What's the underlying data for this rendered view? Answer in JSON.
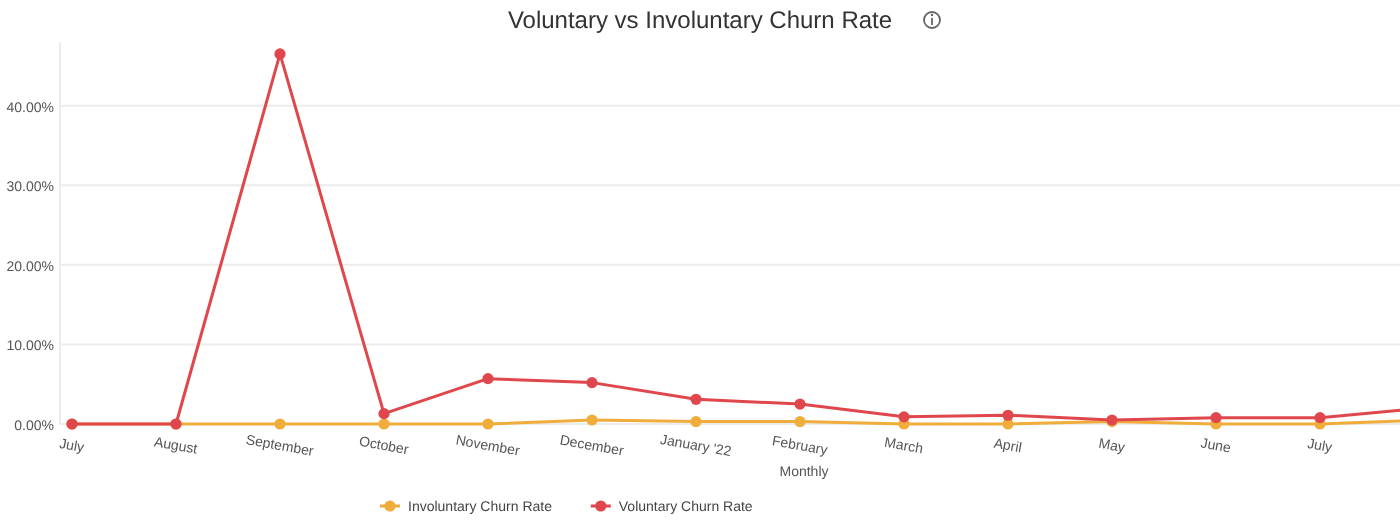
{
  "chart_data": {
    "type": "line",
    "title": "Voluntary vs Involuntary Churn Rate",
    "xlabel": "Monthly",
    "categories": [
      "July",
      "August",
      "September",
      "October",
      "November",
      "December",
      "January '22",
      "February",
      "March",
      "April",
      "May",
      "June",
      "July",
      null
    ],
    "series": [
      {
        "name": "Involuntary Churn Rate",
        "color": "#f0ad3c",
        "values": [
          0,
          0,
          0,
          0,
          0,
          0.5,
          0.3,
          0.3,
          0,
          0,
          0.3,
          0,
          0,
          0.5
        ]
      },
      {
        "name": "Voluntary Churn Rate",
        "color": "#e0474c",
        "values": [
          0,
          0,
          46.5,
          1.3,
          5.7,
          5.2,
          3.1,
          2.5,
          0.9,
          1.1,
          0.5,
          0.8,
          0.8,
          2.0
        ]
      }
    ],
    "ylim": [
      0,
      48
    ],
    "yticks": [
      {
        "value": 0,
        "label": "0.00%"
      },
      {
        "value": 10,
        "label": "10.00%"
      },
      {
        "value": 20,
        "label": "20.00%"
      },
      {
        "value": 30,
        "label": "30.00%"
      },
      {
        "value": 40,
        "label": "40.00%"
      }
    ],
    "grid": "y",
    "legend": "bottom",
    "marker": "circle",
    "line_style": "solid"
  }
}
